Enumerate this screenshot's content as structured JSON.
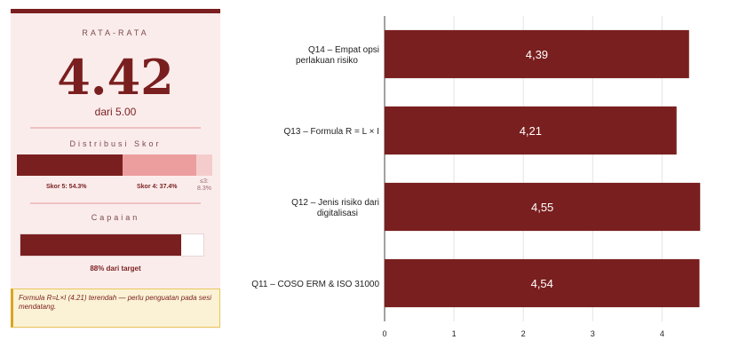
{
  "summary": {
    "heading": "RATA-RATA",
    "average": "4.42",
    "out_of": "dari 5.00",
    "distribution_heading": "Distribusi Skor",
    "distribution": [
      {
        "label": "Skor 5: 54.3%",
        "percent": 54.3,
        "color": "#7a1f1f"
      },
      {
        "label": "Skor 4: 37.4%",
        "percent": 37.4,
        "color": "#ec9e9e"
      },
      {
        "label": "≤3: 8.3%",
        "label_line1": "≤3:",
        "label_line2": "8.3%",
        "percent": 8.3,
        "color": "#f5cccc"
      }
    ],
    "achievement_heading": "Capaian",
    "achievement_percent": 88,
    "achievement_label": "88% dari target",
    "note": "Formula R=L×I (4.21) terendah — perlu penguatan pada sesi mendatang."
  },
  "chart_data": {
    "type": "bar",
    "orientation": "horizontal",
    "categories": [
      {
        "line1": "Q14 – Empat opsi",
        "line2": "perlakuan risiko"
      },
      {
        "line1": "Q13 – Formula R = L × I",
        "line2": ""
      },
      {
        "line1": "Q12 – Jenis risiko dari",
        "line2": "digitalisasi"
      },
      {
        "line1": "Q11 – COSO ERM & ISO 31000",
        "line2": ""
      }
    ],
    "values": [
      4.39,
      4.21,
      4.55,
      4.54
    ],
    "data_labels": [
      "4,39",
      "4,21",
      "4,55",
      "4,54"
    ],
    "xticks": [
      0,
      1,
      2,
      3,
      4
    ],
    "xlim": [
      0,
      4.7
    ],
    "bar_color": "#7a1f1f",
    "grid": true,
    "title": "",
    "xlabel": "",
    "ylabel": ""
  }
}
